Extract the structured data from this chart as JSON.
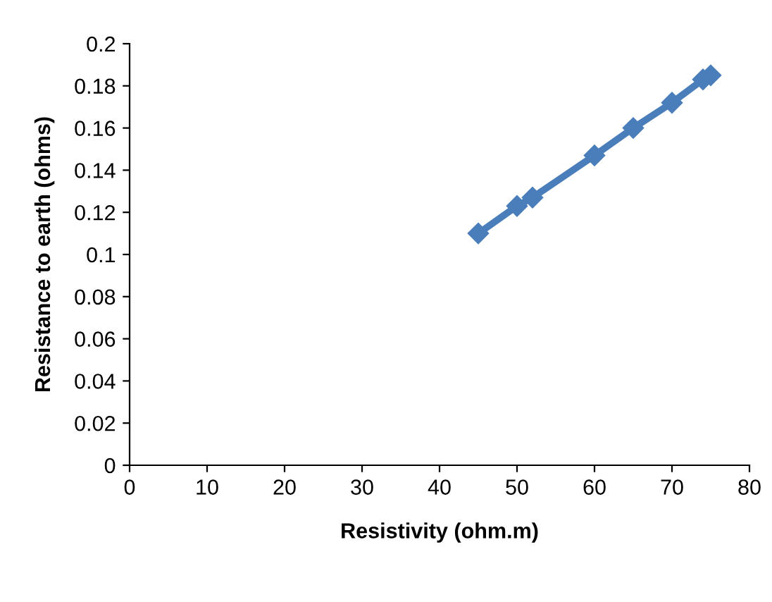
{
  "chart_data": {
    "type": "line",
    "xlabel": "Resistivity (ohm.m)",
    "ylabel": "Resistance to earth (ohms)",
    "series": [
      {
        "color": "#4a7ebb",
        "x": [
          45,
          50,
          52,
          60,
          65,
          70,
          74,
          75
        ],
        "values": [
          0.11,
          0.123,
          0.127,
          0.147,
          0.16,
          0.172,
          0.183,
          0.185
        ]
      }
    ],
    "xlim": [
      0,
      80
    ],
    "xticks": [
      0,
      10,
      20,
      30,
      40,
      50,
      60,
      70,
      80
    ],
    "ylim": [
      0,
      0.2
    ],
    "yticks": [
      0,
      0.02,
      0.04,
      0.06,
      0.08,
      0.1,
      0.12,
      0.14,
      0.16,
      0.18,
      0.2
    ],
    "grid": false,
    "marker": "diamond",
    "line_style": "solid"
  }
}
